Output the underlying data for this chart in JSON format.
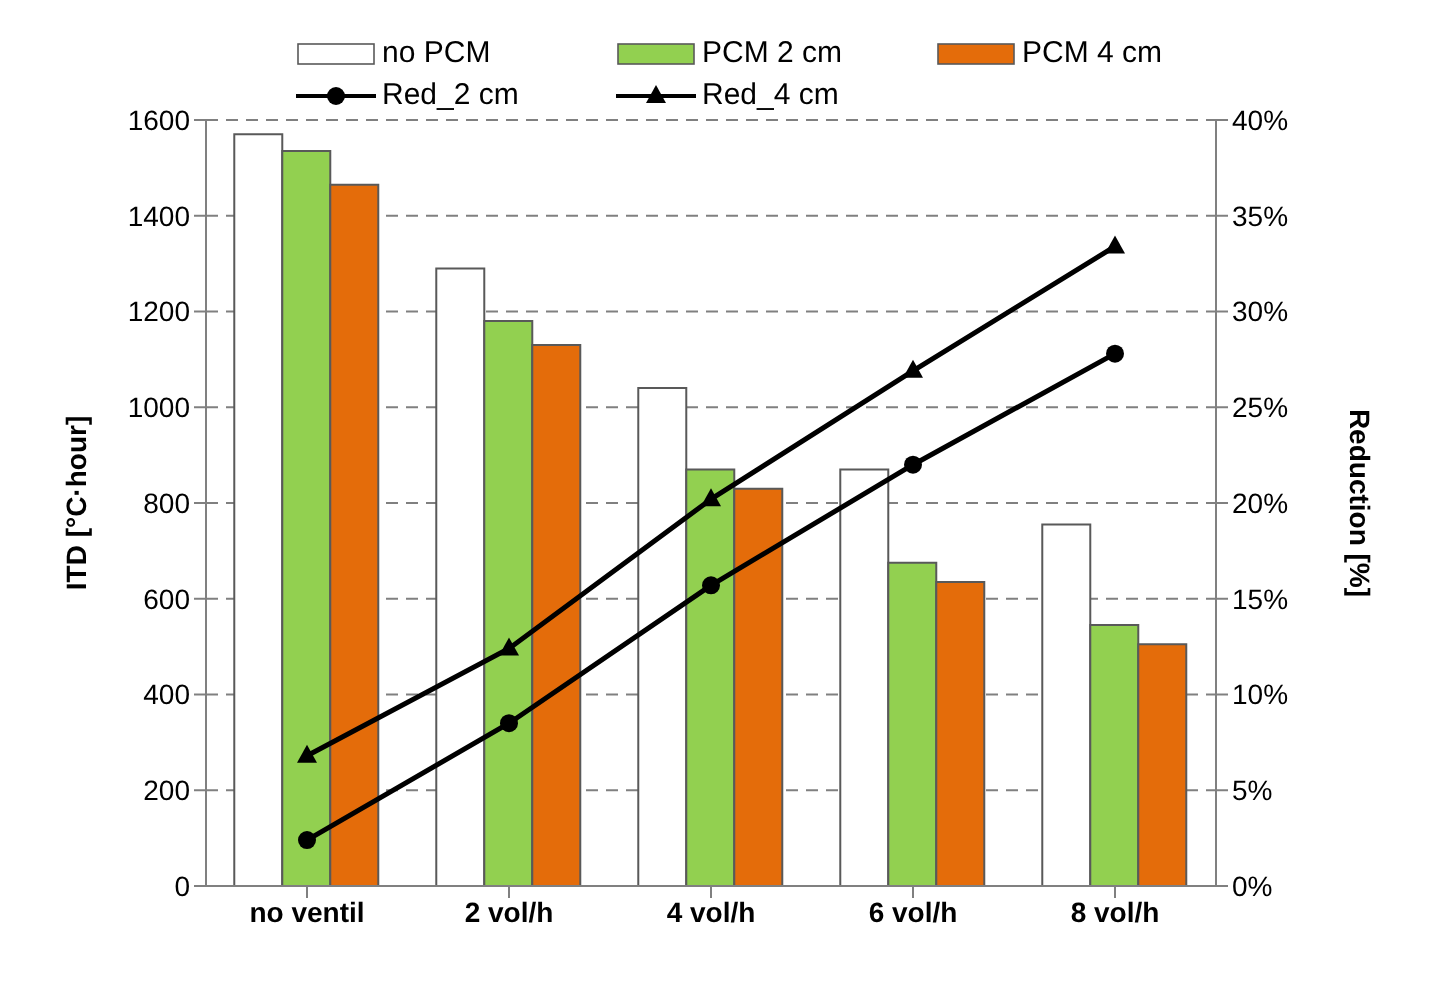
{
  "chart_data": {
    "type": "bar",
    "ylabel": "ITD [°C·hour]",
    "y2label": "Reduction [%]",
    "categories": [
      "no ventil",
      "2 vol/h",
      "4 vol/h",
      "6 vol/h",
      "8 vol/h"
    ],
    "series": [
      {
        "name": "no PCM",
        "color": "#ffffff",
        "values": [
          1570,
          1290,
          1040,
          870,
          755
        ]
      },
      {
        "name": "PCM 2 cm",
        "color": "#92d050",
        "values": [
          1535,
          1180,
          870,
          675,
          545
        ]
      },
      {
        "name": "PCM 4 cm",
        "color": "#e46c0a",
        "values": [
          1465,
          1130,
          830,
          635,
          505
        ]
      },
      {
        "name": "Red_2 cm",
        "type": "line",
        "axis": "y2",
        "color": "#000000",
        "marker": "circle",
        "values": [
          2.4,
          8.5,
          15.7,
          22.0,
          27.8
        ]
      },
      {
        "name": "Red_4 cm",
        "type": "line",
        "axis": "y2",
        "color": "#000000",
        "marker": "triangle",
        "values": [
          6.8,
          12.4,
          20.2,
          26.9,
          33.4
        ]
      }
    ],
    "ylim": [
      0,
      1600
    ],
    "yticks": [
      0,
      200,
      400,
      600,
      800,
      1000,
      1200,
      1400,
      1600
    ],
    "y2lim": [
      0,
      40
    ],
    "y2ticks": [
      {
        "value": 0,
        "label": "0%"
      },
      {
        "value": 5,
        "label": "5%"
      },
      {
        "value": 10,
        "label": "10%"
      },
      {
        "value": 15,
        "label": "15%"
      },
      {
        "value": 20,
        "label": "20%"
      },
      {
        "value": 25,
        "label": "25%"
      },
      {
        "value": 30,
        "label": "30%"
      },
      {
        "value": 35,
        "label": "35%"
      },
      {
        "value": 40,
        "label": "40%"
      }
    ],
    "grid": "y",
    "legend": "top"
  }
}
